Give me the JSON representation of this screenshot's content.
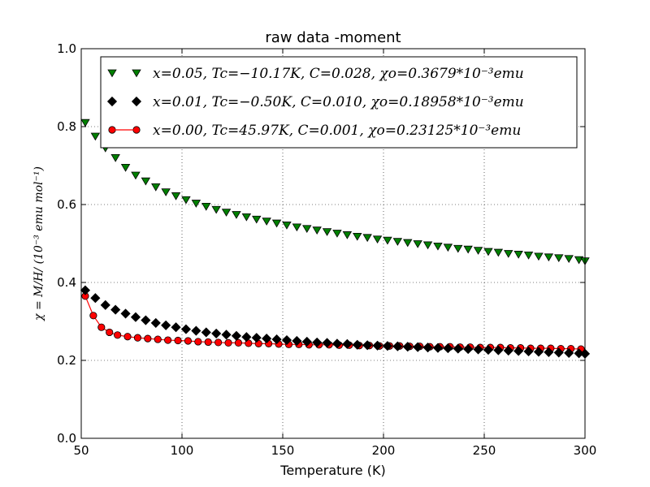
{
  "chart_data": {
    "type": "scatter",
    "title": "raw data -moment",
    "xlabel": "Temperature (K)",
    "ylabel": "χ = M/H/ (10⁻³ emu mol⁻¹)",
    "xlim": [
      50,
      300
    ],
    "ylim": [
      0.0,
      1.0
    ],
    "xticks": [
      "50",
      "100",
      "150",
      "200",
      "250",
      "300"
    ],
    "yticks": [
      "0.0",
      "0.2",
      "0.4",
      "0.6",
      "0.8",
      "1.0"
    ],
    "grid": true,
    "legend_position": "top-right",
    "series": [
      {
        "name": "x=0.05, Tc=−10.17K, C=0.028, χo=0.3679*10⁻³emu",
        "marker": "triangle-down",
        "color": "#008000",
        "line": false,
        "x": [
          52,
          57,
          62,
          67,
          72,
          77,
          82,
          87,
          92,
          97,
          102,
          107,
          112,
          117,
          122,
          127,
          132,
          137,
          142,
          147,
          152,
          157,
          162,
          167,
          172,
          177,
          182,
          187,
          192,
          197,
          202,
          207,
          212,
          217,
          222,
          227,
          232,
          237,
          242,
          247,
          252,
          257,
          262,
          267,
          272,
          277,
          282,
          287,
          292,
          297,
          300
        ],
        "y": [
          0.81,
          0.775,
          0.745,
          0.72,
          0.695,
          0.675,
          0.66,
          0.645,
          0.632,
          0.622,
          0.612,
          0.603,
          0.595,
          0.587,
          0.58,
          0.574,
          0.568,
          0.562,
          0.557,
          0.552,
          0.547,
          0.542,
          0.538,
          0.534,
          0.53,
          0.526,
          0.522,
          0.518,
          0.515,
          0.511,
          0.508,
          0.505,
          0.502,
          0.499,
          0.496,
          0.493,
          0.49,
          0.487,
          0.485,
          0.482,
          0.479,
          0.477,
          0.474,
          0.472,
          0.47,
          0.467,
          0.465,
          0.463,
          0.461,
          0.458,
          0.455
        ]
      },
      {
        "name": "x=0.01, Tc=−0.50K, C=0.010, χo=0.18958*10⁻³emu",
        "marker": "diamond",
        "color": "#000000",
        "line": false,
        "x": [
          52,
          57,
          62,
          67,
          72,
          77,
          82,
          87,
          92,
          97,
          102,
          107,
          112,
          117,
          122,
          127,
          132,
          137,
          142,
          147,
          152,
          157,
          162,
          167,
          172,
          177,
          182,
          187,
          192,
          197,
          202,
          207,
          212,
          217,
          222,
          227,
          232,
          237,
          242,
          247,
          252,
          257,
          262,
          267,
          272,
          277,
          282,
          287,
          292,
          297,
          300
        ],
        "y": [
          0.38,
          0.36,
          0.342,
          0.33,
          0.32,
          0.311,
          0.303,
          0.296,
          0.29,
          0.285,
          0.28,
          0.276,
          0.272,
          0.269,
          0.266,
          0.263,
          0.26,
          0.258,
          0.256,
          0.254,
          0.252,
          0.25,
          0.248,
          0.246,
          0.245,
          0.243,
          0.242,
          0.24,
          0.239,
          0.238,
          0.237,
          0.236,
          0.235,
          0.234,
          0.233,
          0.232,
          0.231,
          0.23,
          0.229,
          0.228,
          0.227,
          0.226,
          0.225,
          0.224,
          0.223,
          0.222,
          0.221,
          0.22,
          0.219,
          0.218,
          0.217
        ]
      },
      {
        "name": "x=0.00, Tc=45.97K, C=0.001, χo=0.23125*10⁻³emu",
        "marker": "circle",
        "color": "#ff0000",
        "line": true,
        "x": [
          52,
          56,
          60,
          64,
          68,
          73,
          78,
          83,
          88,
          93,
          98,
          103,
          108,
          113,
          118,
          123,
          128,
          133,
          138,
          143,
          148,
          153,
          158,
          163,
          168,
          173,
          178,
          183,
          188,
          193,
          198,
          203,
          208,
          213,
          218,
          223,
          228,
          233,
          238,
          243,
          248,
          253,
          258,
          263,
          268,
          273,
          278,
          283,
          288,
          293,
          298
        ],
        "y": [
          0.365,
          0.315,
          0.285,
          0.272,
          0.265,
          0.261,
          0.258,
          0.256,
          0.254,
          0.252,
          0.251,
          0.25,
          0.248,
          0.247,
          0.246,
          0.245,
          0.245,
          0.244,
          0.243,
          0.243,
          0.242,
          0.241,
          0.241,
          0.24,
          0.24,
          0.24,
          0.239,
          0.239,
          0.238,
          0.238,
          0.237,
          0.237,
          0.237,
          0.236,
          0.236,
          0.235,
          0.235,
          0.235,
          0.234,
          0.234,
          0.233,
          0.233,
          0.233,
          0.232,
          0.232,
          0.231,
          0.231,
          0.231,
          0.23,
          0.23,
          0.229
        ]
      }
    ]
  }
}
